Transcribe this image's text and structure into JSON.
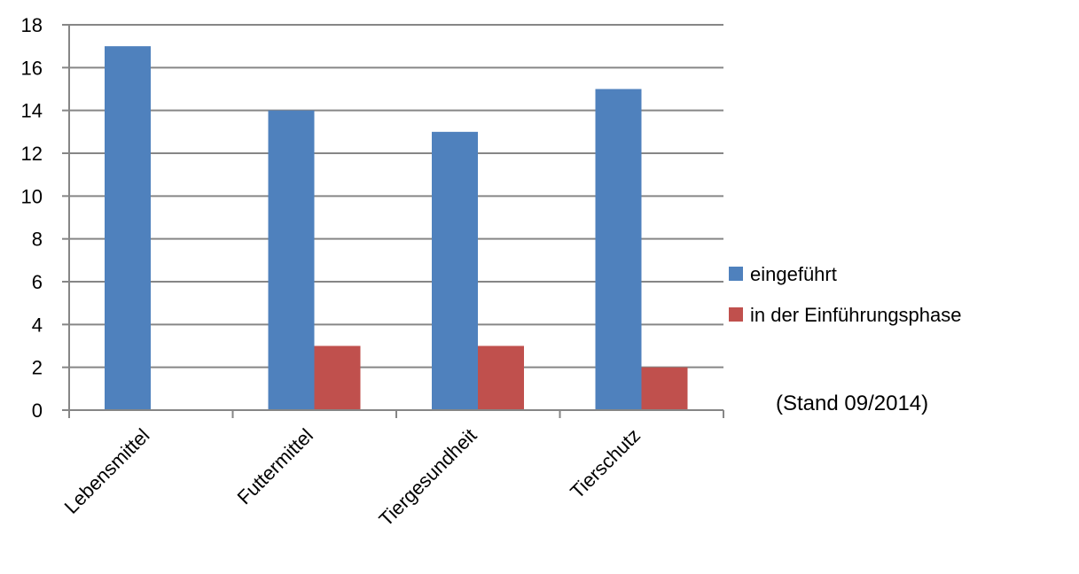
{
  "chart_data": {
    "type": "bar",
    "categories": [
      "Lebensmittel",
      "Futtermittel",
      "Tiergesundheit",
      "Tierschutz"
    ],
    "series": [
      {
        "name": "eingeführt",
        "values": [
          17,
          14,
          13,
          15
        ],
        "color": "#4F81BD"
      },
      {
        "name": "in der Einführungsphase",
        "values": [
          0,
          3,
          3,
          2
        ],
        "color": "#C0504D"
      }
    ],
    "ylim": [
      0,
      18
    ],
    "yticks": [
      0,
      2,
      4,
      6,
      8,
      10,
      12,
      14,
      16,
      18
    ],
    "grid": true,
    "legend_position": "right",
    "note": "(Stand 09/2014)"
  }
}
